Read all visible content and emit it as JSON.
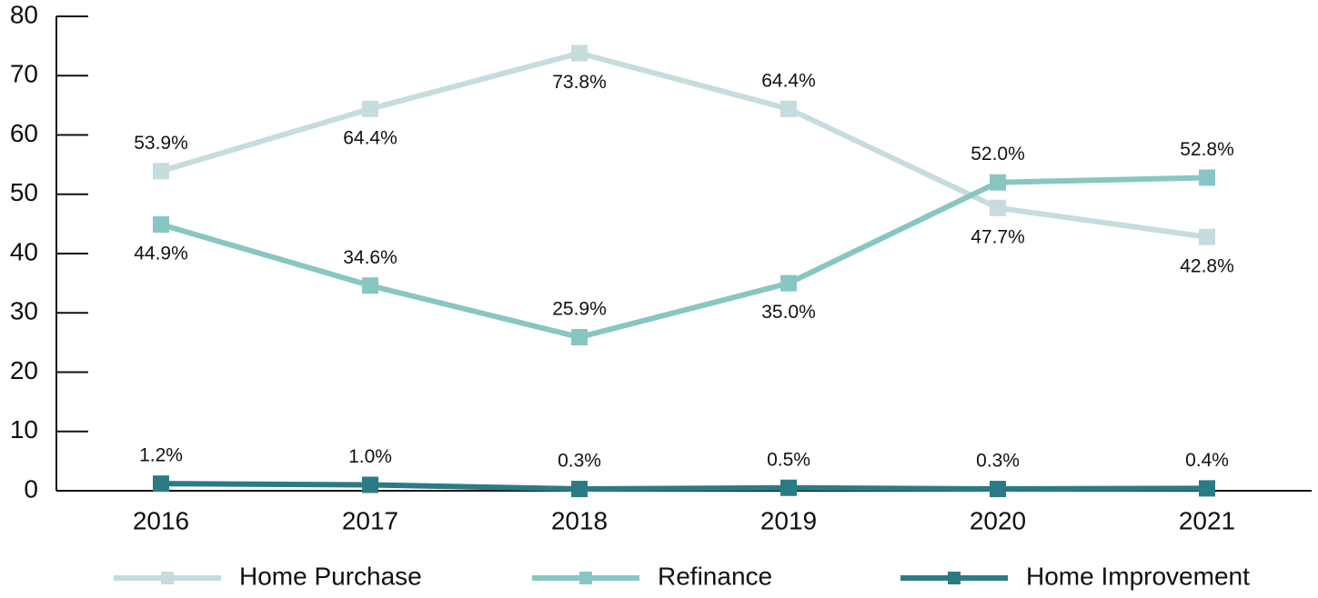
{
  "chart_data": {
    "type": "line",
    "categories": [
      "2016",
      "2017",
      "2018",
      "2019",
      "2020",
      "2021"
    ],
    "series": [
      {
        "name": "Home Purchase",
        "color": "#c6dcdd",
        "values": [
          53.9,
          64.4,
          73.8,
          64.4,
          47.7,
          42.8
        ],
        "value_labels": [
          "53.9%",
          "64.4%",
          "73.8%",
          "64.4%",
          "47.7%",
          "42.8%"
        ]
      },
      {
        "name": "Refinance",
        "color": "#88c6c3",
        "values": [
          44.9,
          34.6,
          25.9,
          35.0,
          52.0,
          52.8
        ],
        "value_labels": [
          "44.9%",
          "34.6%",
          "25.9%",
          "35.0%",
          "52.0%",
          "52.8%"
        ]
      },
      {
        "name": "Home Improvement",
        "color": "#2b7b84",
        "values": [
          1.2,
          1.0,
          0.3,
          0.5,
          0.3,
          0.4
        ],
        "value_labels": [
          "1.2%",
          "1.0%",
          "0.3%",
          "0.5%",
          "0.3%",
          "0.4%"
        ]
      }
    ],
    "ylim": [
      0,
      80
    ],
    "yticks": [
      0,
      10,
      20,
      30,
      40,
      50,
      60,
      70,
      80
    ],
    "legend": "bottom"
  }
}
